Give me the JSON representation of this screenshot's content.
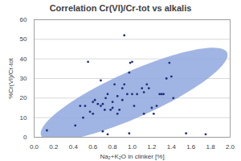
{
  "chart_data": {
    "type": "scatter",
    "title": "Correlation Cr(VI)/Cr-tot vs alkalis",
    "x_label": "Na₂+K₂O in clinker [%]",
    "y_label": "%Cr(VI)/Cr-tot",
    "x": [
      0.13,
      0.42,
      0.47,
      0.5,
      0.52,
      0.55,
      0.57,
      0.6,
      0.62,
      0.65,
      0.68,
      0.68,
      0.7,
      0.72,
      0.73,
      0.75,
      0.75,
      0.78,
      0.8,
      0.8,
      0.82,
      0.85,
      0.85,
      0.87,
      0.9,
      0.9,
      0.92,
      0.92,
      0.95,
      0.97,
      0.97,
      0.98,
      1.0,
      1.0,
      1.02,
      1.05,
      1.1,
      1.12,
      1.12,
      1.15,
      1.17,
      1.2,
      1.22,
      1.25,
      1.28,
      1.3,
      1.32,
      1.35,
      1.38,
      1.4,
      1.42,
      1.55,
      1.75,
      0.7,
      0.6
    ],
    "values": [
      3.5,
      6,
      16,
      10,
      16,
      38.5,
      13,
      12,
      19,
      17,
      29,
      16,
      3,
      14,
      20,
      22,
      1.5,
      14,
      18,
      15,
      27,
      21,
      12,
      14,
      25,
      19,
      27,
      52,
      22,
      2,
      33,
      38,
      22,
      38.5,
      16,
      22,
      25,
      23,
      12,
      27,
      25,
      15,
      12,
      16,
      22,
      22,
      22,
      30,
      38,
      31,
      20,
      2,
      1.5,
      17,
      18
    ],
    "color": "#1f2d7b",
    "marker": "circle",
    "xlim": [
      0,
      2
    ],
    "xticks": [
      {
        "value": 0,
        "label": "0.0"
      },
      {
        "value": 0.2,
        "label": "0.2"
      },
      {
        "value": 0.4,
        "label": "0.4"
      },
      {
        "value": 0.6,
        "label": "0.6"
      },
      {
        "value": 0.8,
        "label": "0.8"
      },
      {
        "value": 1,
        "label": "1.0"
      },
      {
        "value": 1.2,
        "label": "1.2"
      },
      {
        "value": 1.4,
        "label": "1.4"
      },
      {
        "value": 1.6,
        "label": "1.6"
      },
      {
        "value": 1.8,
        "label": "1.8"
      },
      {
        "value": 2,
        "label": "2.0"
      }
    ],
    "ylim": [
      0,
      60
    ],
    "yticks": [
      0,
      10,
      20,
      30,
      40,
      50,
      60
    ],
    "grid": true,
    "ellipse": {
      "center": [
        1.02,
        22
      ],
      "axis1": [
        0.95,
        21
      ],
      "axis2": [
        -0.08,
        11
      ],
      "color": "#8fa8de"
    }
  }
}
